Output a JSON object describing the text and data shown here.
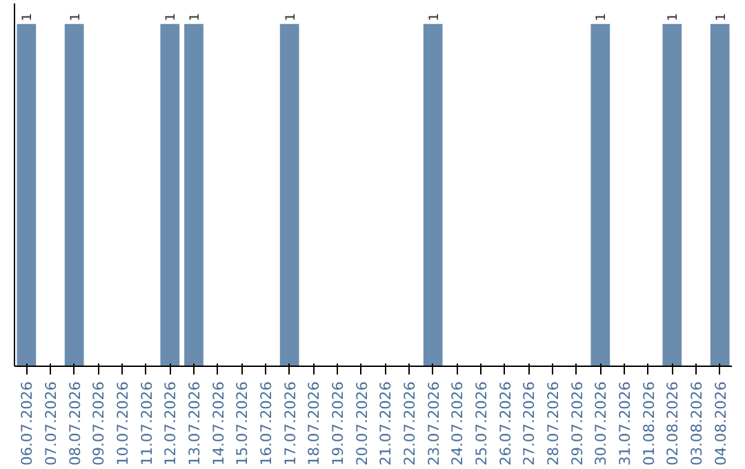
{
  "chart_data": {
    "type": "bar",
    "categories": [
      "06.07.2026",
      "07.07.2026",
      "08.07.2026",
      "09.07.2026",
      "10.07.2026",
      "11.07.2026",
      "12.07.2026",
      "13.07.2026",
      "14.07.2026",
      "15.07.2026",
      "16.07.2026",
      "17.07.2026",
      "18.07.2026",
      "19.07.2026",
      "20.07.2026",
      "21.07.2026",
      "22.07.2026",
      "23.07.2026",
      "24.07.2026",
      "25.07.2026",
      "26.07.2026",
      "27.07.2026",
      "28.07.2026",
      "29.07.2026",
      "30.07.2026",
      "31.07.2026",
      "01.08.2026",
      "02.08.2026",
      "03.08.2026",
      "04.08.2026"
    ],
    "values": [
      1,
      0,
      1,
      0,
      0,
      0,
      1,
      1,
      0,
      0,
      0,
      1,
      0,
      0,
      0,
      0,
      0,
      1,
      0,
      0,
      0,
      0,
      0,
      0,
      1,
      0,
      0,
      1,
      0,
      1
    ],
    "value_labels": [
      "1",
      null,
      "1",
      null,
      null,
      null,
      "1",
      "1",
      null,
      null,
      null,
      "1",
      null,
      null,
      null,
      null,
      null,
      "1",
      null,
      null,
      null,
      null,
      null,
      null,
      "1",
      null,
      null,
      "1",
      null,
      "1"
    ],
    "color": "#6a8caf",
    "grid": false
  }
}
